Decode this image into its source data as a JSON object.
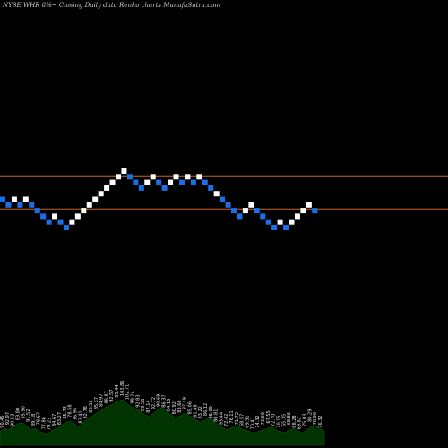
{
  "chart_data": {
    "type": "renko",
    "title": "NYSE WHR 8%~  Closing Daily data  Renko  charts MunafaSutra.com",
    "brick_colors": {
      "up": "#ffffff",
      "down": "#1a6fe8"
    },
    "reference_line_color": "#c8641e",
    "volume_fill_color": "#003300",
    "reference_lines": [
      87.38,
      80.92
    ],
    "bricks": [
      {
        "dir": "down",
        "value": 82.8
      },
      {
        "dir": "down",
        "value": 81.7
      },
      {
        "dir": "up",
        "value": 82.8
      },
      {
        "dir": "down",
        "value": 81.7
      },
      {
        "dir": "up",
        "value": 82.8
      },
      {
        "dir": "down",
        "value": 81.7
      },
      {
        "dir": "down",
        "value": 80.6
      },
      {
        "dir": "down",
        "value": 79.5
      },
      {
        "dir": "down",
        "value": 78.4
      },
      {
        "dir": "up",
        "value": 79.5
      },
      {
        "dir": "down",
        "value": 78.4
      },
      {
        "dir": "down",
        "value": 77.3
      },
      {
        "dir": "up",
        "value": 78.4
      },
      {
        "dir": "up",
        "value": 79.5
      },
      {
        "dir": "up",
        "value": 80.6
      },
      {
        "dir": "up",
        "value": 81.7
      },
      {
        "dir": "up",
        "value": 82.8
      },
      {
        "dir": "up",
        "value": 83.9
      },
      {
        "dir": "up",
        "value": 85.0
      },
      {
        "dir": "up",
        "value": 86.1
      },
      {
        "dir": "up",
        "value": 87.2
      },
      {
        "dir": "up",
        "value": 88.3
      },
      {
        "dir": "down",
        "value": 87.2
      },
      {
        "dir": "down",
        "value": 86.1
      },
      {
        "dir": "down",
        "value": 85.0
      },
      {
        "dir": "up",
        "value": 86.1
      },
      {
        "dir": "up",
        "value": 87.2
      },
      {
        "dir": "down",
        "value": 86.1
      },
      {
        "dir": "down",
        "value": 85.0
      },
      {
        "dir": "up",
        "value": 86.1
      },
      {
        "dir": "up",
        "value": 87.2
      },
      {
        "dir": "down",
        "value": 86.1
      },
      {
        "dir": "up",
        "value": 87.2
      },
      {
        "dir": "down",
        "value": 86.1
      },
      {
        "dir": "up",
        "value": 87.2
      },
      {
        "dir": "down",
        "value": 86.1
      },
      {
        "dir": "down",
        "value": 85.0
      },
      {
        "dir": "up",
        "value": 83.9
      },
      {
        "dir": "down",
        "value": 82.8
      },
      {
        "dir": "down",
        "value": 81.7
      },
      {
        "dir": "down",
        "value": 80.6
      },
      {
        "dir": "down",
        "value": 79.5
      },
      {
        "dir": "up",
        "value": 80.6
      },
      {
        "dir": "up",
        "value": 81.7
      },
      {
        "dir": "down",
        "value": 80.6
      },
      {
        "dir": "down",
        "value": 79.5
      },
      {
        "dir": "down",
        "value": 78.4
      },
      {
        "dir": "down",
        "value": 77.3
      },
      {
        "dir": "up",
        "value": 78.4
      },
      {
        "dir": "down",
        "value": 77.3
      },
      {
        "dir": "up",
        "value": 78.4
      },
      {
        "dir": "up",
        "value": 79.5
      },
      {
        "dir": "up",
        "value": 80.6
      },
      {
        "dir": "up",
        "value": 81.7
      },
      {
        "dir": "down",
        "value": 80.6
      }
    ],
    "volume_labels": [
      "90.45",
      "92.97",
      "90.53",
      "83.80",
      "85.90",
      "91.52",
      "89.18",
      "78.67",
      "77.86",
      "79.23",
      "84.67",
      "83.27",
      "85.73",
      "78.58",
      "76.94",
      "83.41",
      "82.78",
      "86.52",
      "85.37",
      "84.97",
      "88.87",
      "92.57",
      "95.44",
      "103.86",
      "102.71",
      "99.24",
      "92.83",
      "89.56",
      "87.14",
      "92.72",
      "90.69",
      "86.37",
      "84.16",
      "80.92",
      "83.66",
      "87.49",
      "85.06",
      "81.88",
      "83.22",
      "86.12",
      "88.09",
      "80.81",
      "93.44",
      "72.42",
      "76.11",
      "71.72",
      "68.57",
      "69.51",
      "70.41",
      "74.32",
      "73.69",
      "67.55",
      "72.70",
      "70.15",
      "65.35",
      "68.86",
      "68.28",
      "69.82",
      "75.03",
      "80.29",
      "76.96",
      "76.32"
    ],
    "volume_profile": [
      0.18,
      0.22,
      0.2,
      0.25,
      0.28,
      0.3,
      0.26,
      0.2,
      0.22,
      0.18,
      0.16,
      0.15,
      0.2,
      0.22,
      0.26,
      0.3,
      0.32,
      0.28,
      0.24,
      0.3,
      0.34,
      0.38,
      0.42,
      0.46,
      0.5,
      0.52,
      0.55,
      0.58,
      0.6,
      0.55,
      0.5,
      0.48,
      0.45,
      0.4,
      0.38,
      0.42,
      0.46,
      0.5,
      0.45,
      0.4,
      0.36,
      0.38,
      0.42,
      0.4,
      0.36,
      0.32,
      0.3,
      0.34,
      0.36,
      0.3,
      0.26,
      0.22,
      0.2,
      0.24,
      0.26,
      0.22,
      0.2,
      0.18,
      0.16,
      0.18,
      0.2,
      0.22,
      0.24,
      0.2,
      0.18,
      0.16,
      0.2,
      0.22,
      0.18,
      0.16,
      0.2,
      0.24,
      0.26,
      0.22,
      0.18
    ]
  }
}
